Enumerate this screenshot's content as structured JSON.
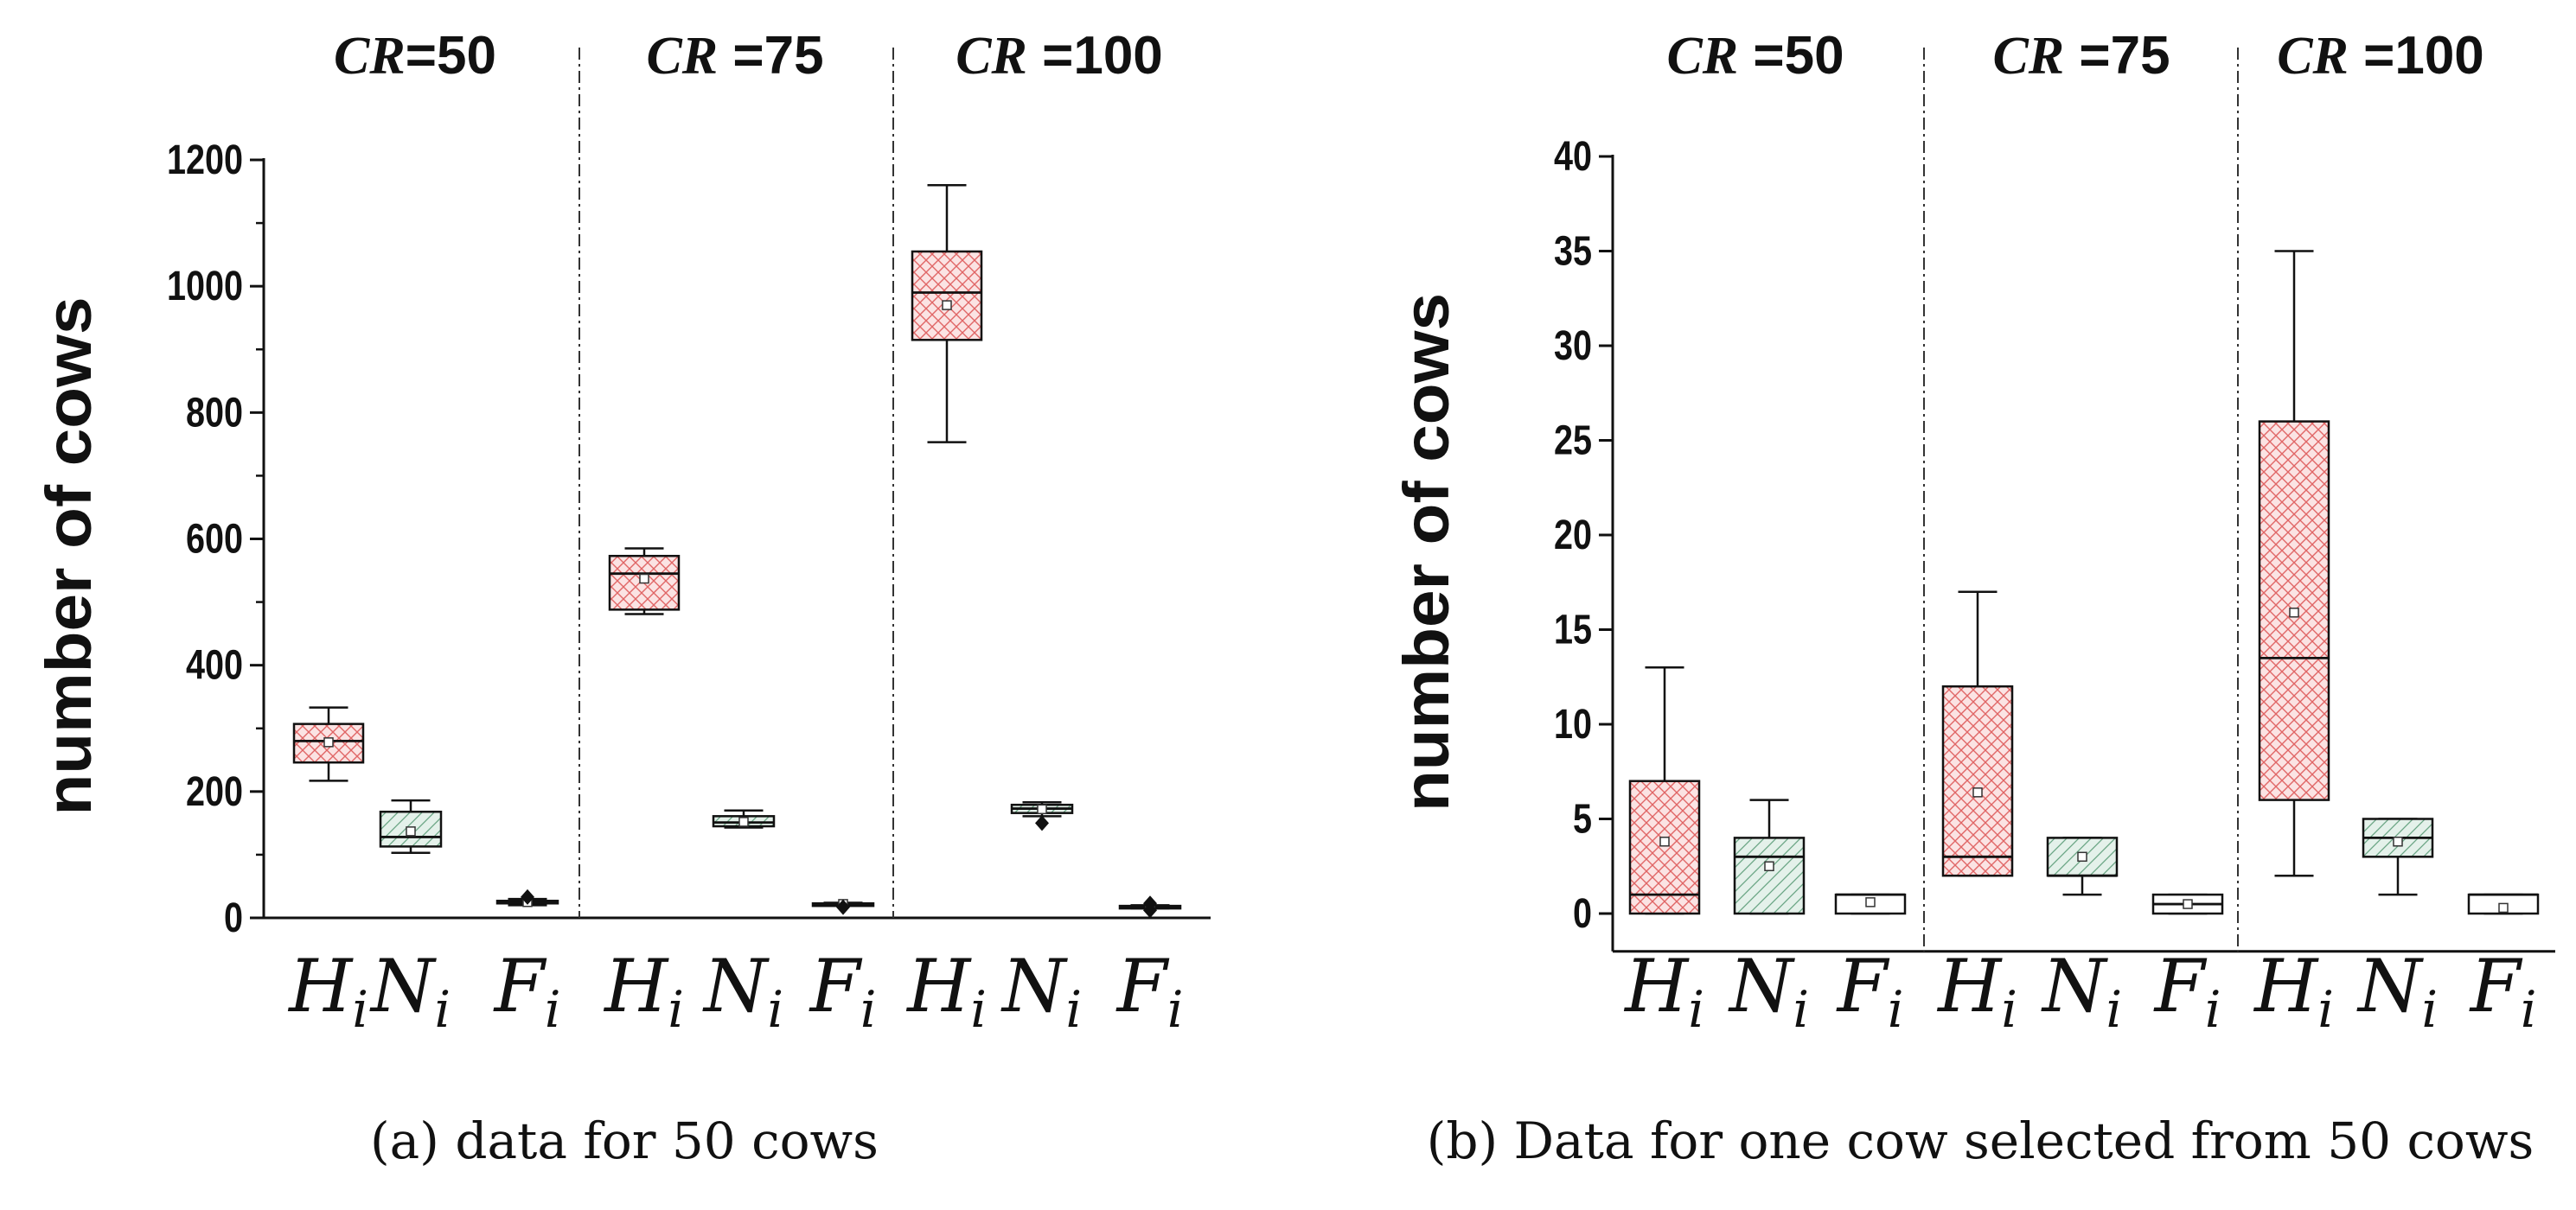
{
  "colors": {
    "H": "#e06666",
    "H_fill": "#fbe3e3",
    "N": "#6aa584",
    "N_fill": "#e4f1ea",
    "F": "#555555",
    "F_fill": "#ffffff",
    "ink": "#111111"
  },
  "chart_data": [
    {
      "type": "box",
      "caption": "(a) data for 50 cows",
      "ylabel": "number of cows",
      "ylim": [
        0,
        1200
      ],
      "yticks": [
        "0",
        "200",
        "400",
        "600",
        "800",
        "1000",
        "1200"
      ],
      "groups": [
        {
          "prefix": "CR",
          "suffix": "=50"
        },
        {
          "prefix": "CR",
          "suffix": " =75"
        },
        {
          "prefix": "CR",
          "suffix": " =100"
        }
      ],
      "categories": [
        {
          "main": "H",
          "sub": "i"
        },
        {
          "main": "N",
          "sub": "i"
        },
        {
          "main": "F",
          "sub": "i"
        }
      ],
      "boxes": [
        {
          "group": 0,
          "category": "H",
          "min": 217,
          "q1": 246,
          "median": 280,
          "q3": 307,
          "max": 333,
          "mean": 278
        },
        {
          "group": 0,
          "category": "N",
          "min": 103,
          "q1": 113,
          "median": 128,
          "q3": 168,
          "max": 186,
          "mean": 137
        },
        {
          "group": 0,
          "category": "F",
          "min": 20,
          "q1": 23,
          "median": 25,
          "q3": 27,
          "max": 30,
          "mean": 25,
          "outliers": [
            33
          ]
        },
        {
          "group": 1,
          "category": "H",
          "min": 481,
          "q1": 488,
          "median": 545,
          "q3": 573,
          "max": 585,
          "mean": 537
        },
        {
          "group": 1,
          "category": "N",
          "min": 143,
          "q1": 145,
          "median": 151,
          "q3": 161,
          "max": 170,
          "mean": 152
        },
        {
          "group": 1,
          "category": "F",
          "min": 20,
          "q1": 21,
          "median": 22,
          "q3": 23,
          "max": 24,
          "mean": 22,
          "outliers": [
            17
          ]
        },
        {
          "group": 2,
          "category": "H",
          "min": 753,
          "q1": 915,
          "median": 990,
          "q3": 1055,
          "max": 1160,
          "mean": 970
        },
        {
          "group": 2,
          "category": "N",
          "min": 161,
          "q1": 166,
          "median": 173,
          "q3": 179,
          "max": 183,
          "mean": 172,
          "outliers": [
            150
          ]
        },
        {
          "group": 2,
          "category": "F",
          "min": 15,
          "q1": 17,
          "median": 18,
          "q3": 19,
          "max": 20,
          "mean": 18,
          "outliers": [
            23,
            12
          ]
        }
      ]
    },
    {
      "type": "box",
      "caption": "(b) Data for one cow selected from 50 cows",
      "ylabel": "number of cows",
      "ylim": [
        -2,
        40
      ],
      "yticks": [
        "0",
        "5",
        "10",
        "15",
        "20",
        "25",
        "30",
        "35",
        "40"
      ],
      "groups": [
        {
          "prefix": "CR",
          "suffix": " =50"
        },
        {
          "prefix": "CR",
          "suffix": " =75"
        },
        {
          "prefix": "CR",
          "suffix": " =100"
        }
      ],
      "categories": [
        {
          "main": "H",
          "sub": "i"
        },
        {
          "main": "N",
          "sub": "i"
        },
        {
          "main": "F",
          "sub": "i"
        }
      ],
      "boxes": [
        {
          "group": 0,
          "category": "H",
          "min": 0,
          "q1": 0,
          "median": 1,
          "q3": 7,
          "max": 13,
          "mean": 3.8
        },
        {
          "group": 0,
          "category": "N",
          "min": 0,
          "q1": 0,
          "median": 3,
          "q3": 4,
          "max": 6,
          "mean": 2.5
        },
        {
          "group": 0,
          "category": "F",
          "min": 0,
          "q1": 0,
          "median": 1,
          "q3": 1,
          "max": 1,
          "mean": 0.6
        },
        {
          "group": 1,
          "category": "H",
          "min": 2,
          "q1": 2,
          "median": 3,
          "q3": 12,
          "max": 17,
          "mean": 6.4
        },
        {
          "group": 1,
          "category": "N",
          "min": 1,
          "q1": 2,
          "median": 2,
          "q3": 4,
          "max": 4,
          "mean": 3.0
        },
        {
          "group": 1,
          "category": "F",
          "min": 0,
          "q1": 0,
          "median": 0.5,
          "q3": 1,
          "max": 1,
          "mean": 0.5
        },
        {
          "group": 2,
          "category": "H",
          "min": 2,
          "q1": 6,
          "median": 13.5,
          "q3": 26,
          "max": 35,
          "mean": 15.9
        },
        {
          "group": 2,
          "category": "N",
          "min": 1,
          "q1": 3,
          "median": 4,
          "q3": 5,
          "max": 5,
          "mean": 3.8
        },
        {
          "group": 2,
          "category": "F",
          "min": 0,
          "q1": 0,
          "median": 1,
          "q3": 1,
          "max": 1,
          "mean": 0.3
        }
      ]
    }
  ]
}
